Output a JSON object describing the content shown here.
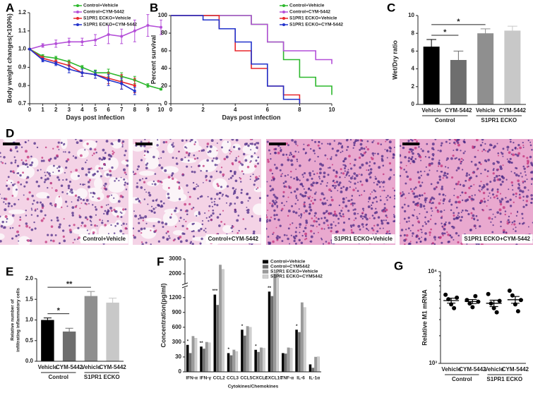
{
  "chart_data": [
    {
      "type": "line",
      "panel": "A",
      "xlabel": "Days post infection",
      "ylabel": "Body weight changes(×100%)",
      "x": [
        0,
        1,
        2,
        3,
        4,
        5,
        6,
        7,
        8,
        9,
        10
      ],
      "xlim": [
        0,
        10
      ],
      "xticks": [
        0,
        1,
        2,
        3,
        4,
        5,
        6,
        7,
        8,
        9,
        10
      ],
      "ylim": [
        0.7,
        1.2
      ],
      "yticks": [
        0.7,
        0.8,
        0.9,
        {
          "value": 1,
          "label": "1.0"
        },
        1.1,
        1.2
      ],
      "legend": "top-right",
      "series": [
        {
          "name": "Control+Vehicle",
          "color": "#2db82d",
          "values": [
            1.0,
            0.96,
            0.95,
            0.93,
            0.9,
            0.87,
            0.87,
            0.85,
            0.83,
            0.8,
            0.78
          ],
          "errors": [
            0,
            0.01,
            0.01,
            0.01,
            0.01,
            0.015,
            0.02,
            0.02,
            0.02,
            0.01,
            0.005
          ]
        },
        {
          "name": "Control+CYM-5442",
          "color": "#b44fd8",
          "values": [
            1.0,
            1.02,
            1.03,
            1.04,
            1.04,
            1.05,
            1.08,
            1.07,
            1.1,
            1.13,
            1.12
          ],
          "errors": [
            0,
            0.01,
            0.02,
            0.02,
            0.02,
            0.03,
            0.05,
            0.04,
            0.06,
            0.06,
            0.04
          ]
        },
        {
          "name": "S1PR1 ECKO+Vehicle",
          "color": "#e8262b",
          "values": [
            1.0,
            0.95,
            0.93,
            0.91,
            0.87,
            0.86,
            0.84,
            0.82,
            0.8,
            null,
            null
          ],
          "errors": [
            0,
            0.01,
            0.01,
            0.02,
            0.02,
            0.02,
            0.03,
            0.04,
            0.04,
            null,
            null
          ]
        },
        {
          "name": "S1PR1 ECKO+CYM-5442",
          "color": "#2233cc",
          "values": [
            1.0,
            0.94,
            0.92,
            0.89,
            0.87,
            0.86,
            0.83,
            0.81,
            0.77,
            null,
            null
          ],
          "errors": [
            0,
            0.01,
            0.01,
            0.02,
            0.02,
            0.02,
            0.03,
            0.03,
            0.02,
            null,
            null
          ]
        }
      ]
    },
    {
      "type": "step",
      "panel": "B",
      "xlabel": "Days post infection",
      "ylabel": "Percent survival",
      "xlim": [
        0,
        10
      ],
      "xticks": [
        0,
        2,
        4,
        6,
        8,
        10
      ],
      "ylim": [
        0,
        100
      ],
      "yticks": [
        0,
        20,
        40,
        60,
        80,
        100
      ],
      "legend": "top-right",
      "series": [
        {
          "name": "Control+Vehicle",
          "color": "#2db82d",
          "x": [
            0,
            5,
            6,
            7,
            8,
            9,
            10
          ],
          "values": [
            100,
            90,
            70,
            50,
            30,
            20,
            10
          ]
        },
        {
          "name": "Control+CYM-5442",
          "color": "#b44fd8",
          "x": [
            0,
            5,
            6,
            7,
            9,
            10
          ],
          "values": [
            100,
            90,
            70,
            60,
            50,
            45
          ]
        },
        {
          "name": "S1PR1 ECKO+Vehicle",
          "color": "#e8262b",
          "x": [
            0,
            3,
            4,
            5,
            6,
            7,
            8
          ],
          "values": [
            100,
            85,
            60,
            40,
            20,
            10,
            0
          ]
        },
        {
          "name": "S1PR1 ECKO+CYM-5442",
          "color": "#2233cc",
          "x": [
            0,
            2,
            3,
            4,
            5,
            6,
            7,
            8
          ],
          "values": [
            100,
            95,
            85,
            70,
            45,
            20,
            5,
            0
          ]
        }
      ]
    },
    {
      "type": "bar",
      "panel": "C",
      "ylabel": "Wet/Dry ratio",
      "categories": [
        "Vehicle",
        "CYM-5442",
        "Vehicle",
        "CYM-5442"
      ],
      "group_labels": [
        "Control",
        "S1PR1 ECKO"
      ],
      "values": [
        6.5,
        5.0,
        8.0,
        8.3
      ],
      "errors": [
        0.8,
        1.0,
        0.5,
        0.5
      ],
      "colors": [
        "#000000",
        "#6e6e6e",
        "#8f8f8f",
        "#c8c8c8"
      ],
      "ylim": [
        0,
        10
      ],
      "yticks": [
        0,
        2,
        4,
        6,
        8,
        10
      ],
      "annotations": [
        {
          "text": "*",
          "between": [
            0,
            1
          ]
        },
        {
          "text": "*",
          "between": [
            0,
            2
          ]
        }
      ]
    },
    {
      "type": "bar",
      "panel": "E",
      "ylabel": [
        "Relative number of",
        "infiltrating inflammatory cells"
      ],
      "categories": [
        "Vehicle",
        "CYM-5442",
        "Vehicle",
        "CYM-5442"
      ],
      "group_labels": [
        "Control",
        "S1PR1 ECKO"
      ],
      "values": [
        1.0,
        0.72,
        1.58,
        1.42
      ],
      "errors": [
        0.05,
        0.08,
        0.11,
        0.11
      ],
      "colors": [
        "#000000",
        "#6e6e6e",
        "#8f8f8f",
        "#c8c8c8"
      ],
      "ylim": [
        0,
        2
      ],
      "yticks": [
        {
          "value": 0,
          "label": "0.0"
        },
        0.5,
        {
          "value": 1,
          "label": "1.0"
        },
        1.5,
        {
          "value": 2,
          "label": "2.0"
        }
      ],
      "annotations": [
        {
          "text": "*",
          "between": [
            0,
            1
          ]
        },
        {
          "text": "**",
          "between": [
            0,
            2
          ]
        }
      ]
    },
    {
      "type": "grouped_bar",
      "panel": "F",
      "xlabel": "Cytokines/Chemokines",
      "ylabel": "Concentration(pg/ml)",
      "categories": [
        "IFN-α",
        "IFN-γ",
        "CCL2",
        "CCL3",
        "CCL5",
        "CXCL2",
        "CXCL10",
        "TNF-α",
        "IL-6",
        "IL-1α"
      ],
      "ylim": [
        0,
        3000
      ],
      "yticks": [
        0,
        30,
        300,
        600,
        900,
        1200,
        2000,
        3000
      ],
      "axis_break": [
        1200,
        2000
      ],
      "significance": [
        "*",
        "**",
        "***",
        "*",
        "*",
        "*",
        "**",
        null,
        "*",
        null
      ],
      "legend": "top-right",
      "series": [
        {
          "name": "Control+Vehicle",
          "color": "#000000",
          "values": [
            250,
            220,
            1300,
            100,
            550,
            160,
            1400,
            100,
            550,
            15
          ]
        },
        {
          "name": "Control+CYM5442",
          "color": "#6e6e6e",
          "values": [
            100,
            180,
            1050,
            60,
            430,
            120,
            1250,
            90,
            500,
            8
          ]
        },
        {
          "name": "S1PR1 ECKO+Vehicle",
          "color": "#9a9a9a",
          "values": [
            420,
            300,
            2600,
            160,
            620,
            200,
            2000,
            200,
            1100,
            30
          ]
        },
        {
          "name": "S1PR1 ECKO+CYM5442",
          "color": "#cfcfcf",
          "values": [
            380,
            290,
            2300,
            130,
            600,
            190,
            2100,
            190,
            1000,
            35
          ]
        }
      ]
    },
    {
      "type": "dot",
      "panel": "G",
      "ylabel": "Relative M1 mRNA",
      "log_scale": true,
      "categories": [
        "Vehicle",
        "CYM-5442",
        "Vehicle",
        "CYM-5442"
      ],
      "group_labels": [
        "Control",
        "S1PR1 ECKO"
      ],
      "ylim": [
        1000,
        10000
      ],
      "yticks": [
        {
          "value": 1000,
          "label": "10³"
        },
        {
          "value": 10000,
          "label": "10⁴"
        }
      ],
      "points": [
        [
          5600,
          5000,
          4400,
          4000,
          5200
        ],
        [
          4900,
          4500,
          4100,
          5400,
          4700
        ],
        [
          5700,
          4500,
          4000,
          3600,
          4800
        ],
        [
          6200,
          5500,
          4400,
          3700,
          4900
        ]
      ],
      "means": [
        4840,
        4720,
        4520,
        4940
      ],
      "errors": [
        300,
        240,
        360,
        420
      ],
      "color": "#000000"
    }
  ],
  "histology": {
    "panel": "D",
    "images": [
      {
        "caption": "Control+Vehicle"
      },
      {
        "caption": "Control+CYM-5442"
      },
      {
        "caption": "S1PR1 ECKO+Vehicle"
      },
      {
        "caption": "S1PR1 ECKO+CYM-5442"
      }
    ]
  }
}
